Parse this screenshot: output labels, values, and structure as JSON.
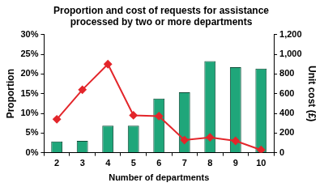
{
  "chart_data": {
    "type": "bar",
    "title": [
      "Proportion and cost of requests for assistance",
      "processed by two or more departments"
    ],
    "x_label": "Number of departments",
    "y_label": "Proportion",
    "y2_label": "Unit cost (£)",
    "categories": [
      "2",
      "3",
      "4",
      "5",
      "6",
      "7",
      "8",
      "9",
      "10"
    ],
    "series": [
      {
        "type": "bar",
        "axis": "y2",
        "color": "#1fa67a",
        "values": [
          115,
          120,
          275,
          275,
          550,
          615,
          930,
          870,
          855
        ]
      },
      {
        "type": "line",
        "color": "#e3262b",
        "marker": "diamond",
        "line_style": "solid",
        "values": [
          8.5,
          16,
          22.5,
          9.5,
          9.3,
          3.2,
          3.9,
          3,
          0.7
        ]
      }
    ],
    "ylim": [
      0,
      30
    ],
    "yticks": [
      {
        "value": 0,
        "label": "0%"
      },
      {
        "value": 5,
        "label": "5%"
      },
      {
        "value": 10,
        "label": "10%"
      },
      {
        "value": 15,
        "label": "15%"
      },
      {
        "value": 20,
        "label": "20%"
      },
      {
        "value": 25,
        "label": "25%"
      },
      {
        "value": 30,
        "label": "30%"
      }
    ],
    "y2lim": [
      0,
      1200
    ],
    "y2ticks": [
      0,
      200,
      400,
      600,
      800,
      {
        "value": 1000,
        "label": "1,000"
      },
      {
        "value": 1200,
        "label": "1,200"
      }
    ],
    "grid": false,
    "legend": null
  }
}
